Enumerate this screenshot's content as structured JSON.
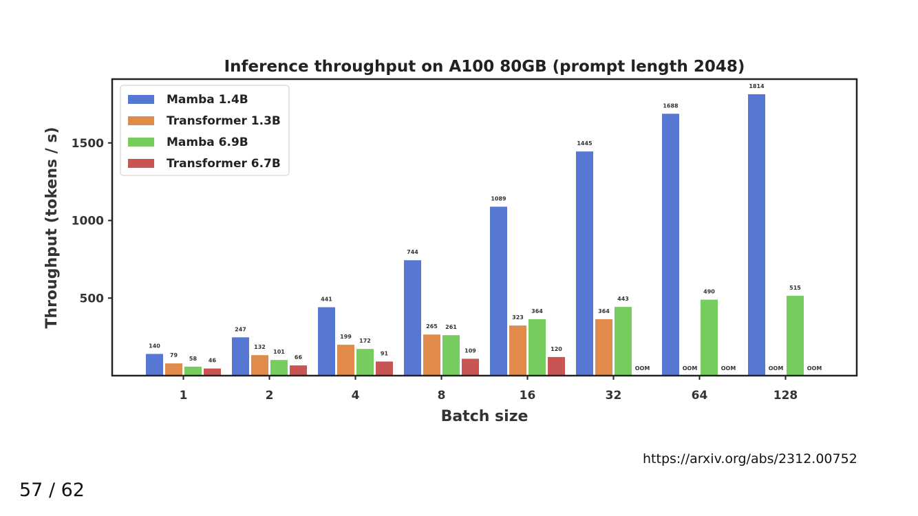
{
  "slide": {
    "source_url": "https://arxiv.org/abs/2312.00752",
    "page_number": "57 / 62"
  },
  "chart_data": {
    "type": "bar",
    "title": "Inference throughput on A100 80GB (prompt length 2048)",
    "xlabel": "Batch size",
    "ylabel": "Throughput (tokens / s)",
    "categories": [
      "1",
      "2",
      "4",
      "8",
      "16",
      "32",
      "64",
      "128"
    ],
    "ylim": [
      0,
      1900
    ],
    "yticks": [
      500,
      1000,
      1500
    ],
    "grid": false,
    "legend_position": "top-left",
    "oom_label": "OOM",
    "series": [
      {
        "name": "Mamba 1.4B",
        "color": "#5677d4",
        "values": [
          140,
          247,
          441,
          744,
          1089,
          1445,
          1688,
          1814
        ]
      },
      {
        "name": "Transformer 1.3B",
        "color": "#e08a4c",
        "values": [
          79,
          132,
          199,
          265,
          323,
          364,
          null,
          null
        ]
      },
      {
        "name": "Mamba 6.9B",
        "color": "#76cd5e",
        "values": [
          58,
          101,
          172,
          261,
          364,
          443,
          490,
          515
        ]
      },
      {
        "name": "Transformer 6.7B",
        "color": "#c95454",
        "values": [
          46,
          66,
          91,
          109,
          120,
          null,
          null,
          null
        ]
      }
    ]
  }
}
